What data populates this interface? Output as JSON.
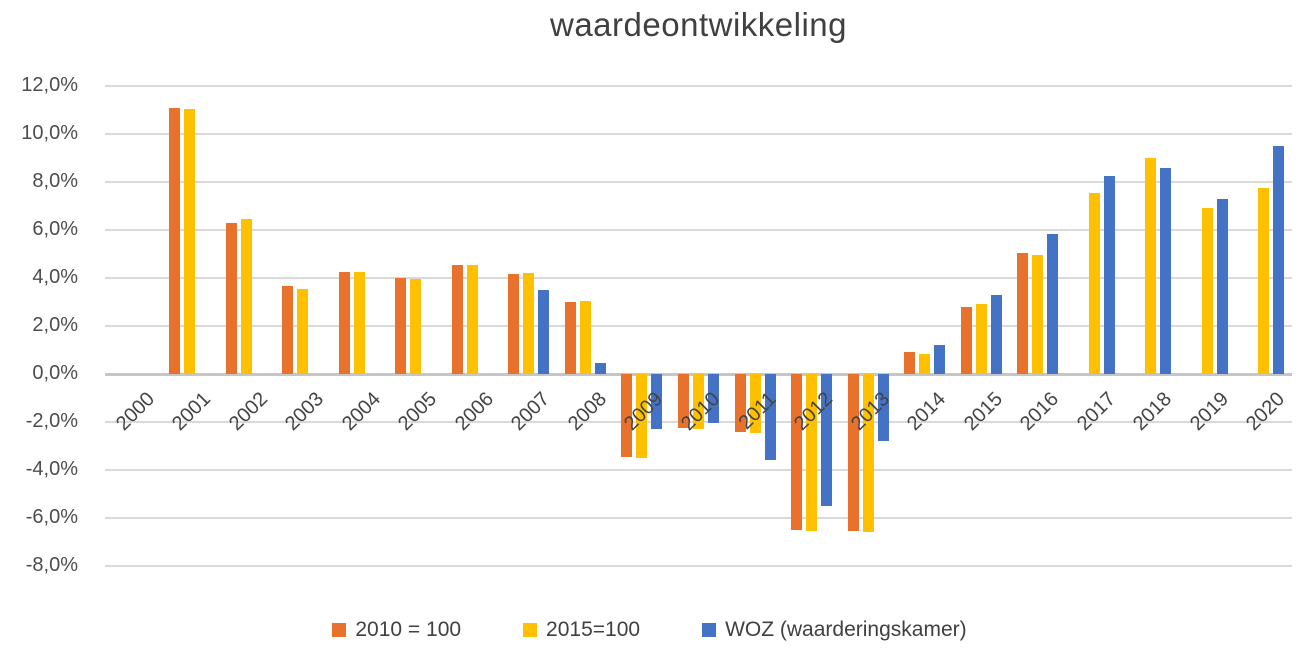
{
  "title": "waardeontwikkeling",
  "chart_data": {
    "type": "bar",
    "title": "waardeontwikkeling",
    "categories": [
      "2000",
      "2001",
      "2002",
      "2003",
      "2004",
      "2005",
      "2006",
      "2007",
      "2008",
      "2009",
      "2010",
      "2011",
      "2012",
      "2013",
      "2014",
      "2015",
      "2016",
      "2017",
      "2018",
      "2019",
      "2020"
    ],
    "series": [
      {
        "name": "2010 = 100",
        "color": "#E8712C",
        "values": [
          null,
          11.1,
          6.3,
          3.65,
          4.25,
          4.0,
          4.55,
          4.15,
          3.0,
          -3.45,
          -2.25,
          -2.4,
          -6.5,
          -6.55,
          0.9,
          2.8,
          5.05,
          null,
          null,
          null,
          null
        ]
      },
      {
        "name": "2015=100",
        "color": "#FFC000",
        "values": [
          null,
          11.05,
          6.45,
          3.55,
          4.25,
          3.95,
          4.55,
          4.2,
          3.05,
          -3.5,
          -2.3,
          -2.45,
          -6.55,
          -6.6,
          0.85,
          2.9,
          4.95,
          7.55,
          9.0,
          6.9,
          7.75
        ]
      },
      {
        "name": "WOZ (waarderingskamer)",
        "color": "#4472C4",
        "values": [
          null,
          null,
          null,
          null,
          null,
          null,
          null,
          3.5,
          0.45,
          -2.3,
          -2.05,
          -3.6,
          -5.5,
          -2.8,
          1.2,
          3.3,
          5.85,
          8.25,
          8.6,
          7.3,
          9.5
        ]
      }
    ],
    "ylim": [
      -8,
      12
    ],
    "ytick_step": 2,
    "yticks": [
      "12,0%",
      "10,0%",
      "8,0%",
      "6,0%",
      "4,0%",
      "2,0%",
      "0,0%",
      "-2,0%",
      "-4,0%",
      "-6,0%",
      "-8,0%"
    ],
    "xlabel": "",
    "ylabel": "",
    "grid": true,
    "legend_position": "bottom",
    "colors": {
      "gridline": "#D9D9D9",
      "zero_line": "#C6C6C6",
      "title_text": "#404040",
      "tick_text": "#4D4D4D",
      "background": "#FFFFFF"
    }
  }
}
